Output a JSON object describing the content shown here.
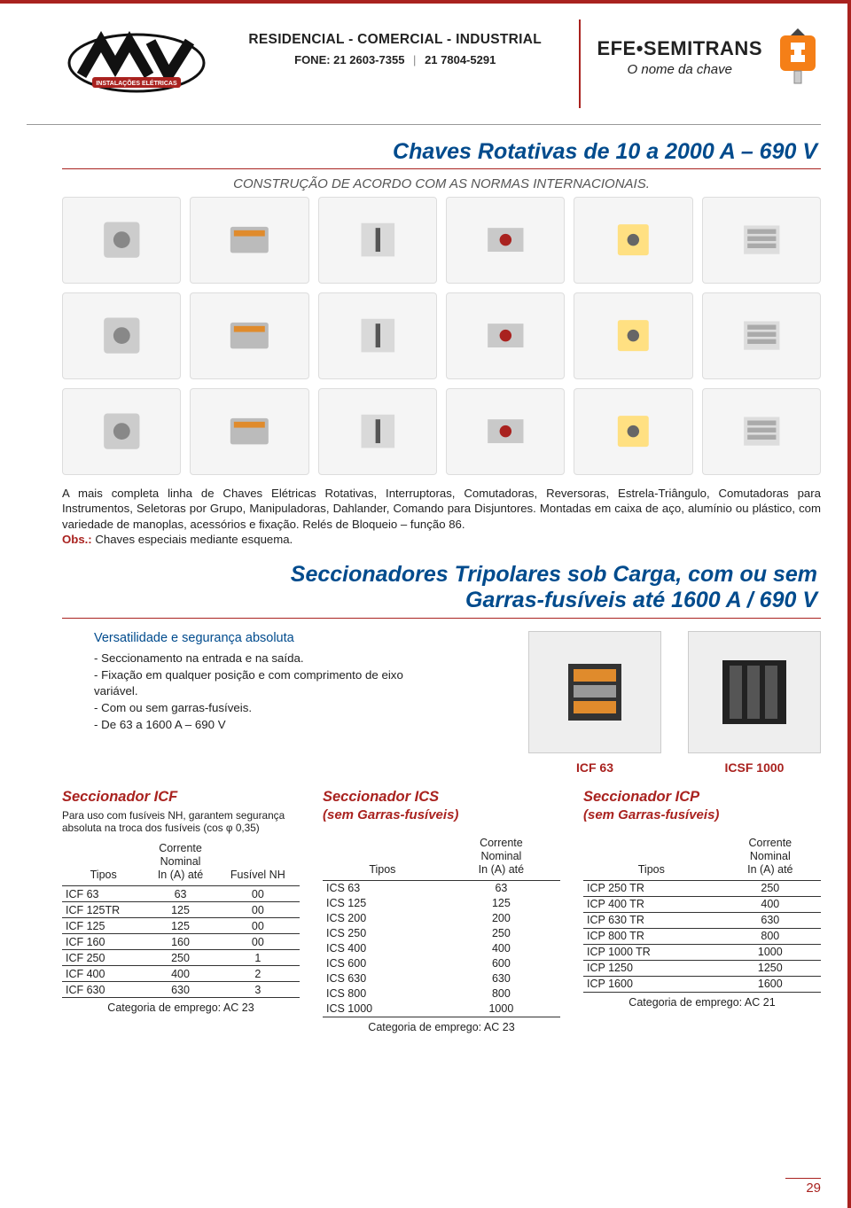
{
  "header": {
    "tagline": "RESIDENCIAL - COMERCIAL - INDUSTRIAL",
    "phone_label": "FONE: 21 2603-7355",
    "phone2": "21 7804-5291",
    "brand_right_1": "EFE•SEMITRANS",
    "brand_right_2": "O nome da chave"
  },
  "section1": {
    "title": "Chaves Rotativas de 10 a 2000 A – 690 V",
    "grid_caption": "CONSTRUÇÃO DE ACORDO COM AS NORMAS INTERNACIONAIS.",
    "paragraph": "A mais completa linha de Chaves Elétricas Rotativas, Interruptoras, Comutadoras, Reversoras, Estrela-Triângulo, Comutadoras para Instrumentos, Seletoras por Grupo, Manipuladoras, Dahlander, Comando para Disjuntores. Montadas em caixa de aço, alumínio ou plástico, com variedade de manoplas, acessórios e fixação. Relés de Bloqueio – função 86.",
    "obs_label": "Obs.:",
    "obs_text": " Chaves especiais mediante esquema."
  },
  "section2": {
    "title_l1": "Seccionadores Tripolares sob Carga, com ou sem",
    "title_l2": "Garras-fusíveis até 1600 A / 690 V",
    "features_head": "Versatilidade e segurança absoluta",
    "features": [
      "Seccionamento na entrada e na saída.",
      "Fixação em qualquer posição e com comprimento de eixo variável.",
      "Com ou sem garras-fusíveis.",
      "De 63 a 1600 A – 690 V"
    ],
    "img_labels": [
      "ICF 63",
      "ICSF 1000"
    ]
  },
  "tables": {
    "icf": {
      "title": "Seccionador ICF",
      "sub": "Para uso com fusíveis NH, garantem segurança absoluta na troca dos fusíveis (cos φ 0,35)",
      "headers": [
        "Tipos",
        "Corrente\nNominal\nIn (A) até",
        "Fusível NH"
      ],
      "rows": [
        [
          "ICF 63",
          "63",
          "00"
        ],
        [
          "ICF 125TR",
          "125",
          "00"
        ],
        [
          "ICF 125",
          "125",
          "00"
        ],
        [
          "ICF 160",
          "160",
          "00"
        ],
        [
          "ICF 250",
          "250",
          "1"
        ],
        [
          "ICF 400",
          "400",
          "2"
        ],
        [
          "ICF 630",
          "630",
          "3"
        ]
      ],
      "category": "Categoria de emprego: AC 23"
    },
    "ics": {
      "title": "Seccionador ICS",
      "subtitle2": "(sem Garras-fusíveis)",
      "headers": [
        "Tipos",
        "Corrente\nNominal\nIn (A) até"
      ],
      "rows": [
        [
          "ICS   63",
          "63"
        ],
        [
          "ICS  125",
          "125"
        ],
        [
          "ICS  200",
          "200"
        ],
        [
          "ICS  250",
          "250"
        ],
        [
          "ICS  400",
          "400"
        ],
        [
          "ICS  600",
          "600"
        ],
        [
          "ICS  630",
          "630"
        ],
        [
          "ICS  800",
          "800"
        ],
        [
          "ICS 1000",
          "1000"
        ]
      ],
      "category": "Categoria de emprego: AC 23"
    },
    "icp": {
      "title": "Seccionador ICP",
      "subtitle2": "(sem Garras-fusíveis)",
      "headers": [
        "Tipos",
        "Corrente\nNominal\nIn (A) até"
      ],
      "rows": [
        [
          "ICP  250 TR",
          "250"
        ],
        [
          "ICP  400 TR",
          "400"
        ],
        [
          "ICP  630 TR",
          "630"
        ],
        [
          "ICP  800 TR",
          "800"
        ],
        [
          "ICP 1000 TR",
          "1000"
        ],
        [
          "ICP 1250",
          "1250"
        ],
        [
          "ICP 1600",
          "1600"
        ]
      ],
      "category": "Categoria de emprego: AC 21"
    }
  },
  "page_number": "29",
  "colors": {
    "accent_red": "#a9221f",
    "accent_blue": "#004b8d",
    "brand_orange": "#f57f17"
  }
}
